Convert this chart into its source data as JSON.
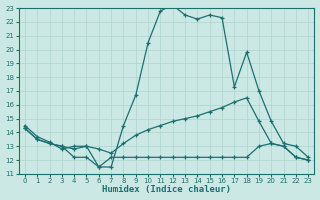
{
  "xlabel": "Humidex (Indice chaleur)",
  "background_color": "#cce8e4",
  "grid_color": "#aad4cc",
  "line_color": "#1a7070",
  "xlim_min": -0.5,
  "xlim_max": 23.5,
  "ylim_min": 11,
  "ylim_max": 23,
  "xticks": [
    0,
    1,
    2,
    3,
    4,
    5,
    6,
    7,
    8,
    9,
    10,
    11,
    12,
    13,
    14,
    15,
    16,
    17,
    18,
    19,
    20,
    21,
    22,
    23
  ],
  "yticks": [
    11,
    12,
    13,
    14,
    15,
    16,
    17,
    18,
    19,
    20,
    21,
    22,
    23
  ],
  "line1_x": [
    0,
    1,
    2,
    3,
    4,
    5,
    6,
    7,
    8,
    9,
    10,
    11,
    12,
    13,
    14,
    15,
    16,
    17,
    18,
    19,
    20,
    21,
    22,
    23
  ],
  "line1_y": [
    14.5,
    13.7,
    13.3,
    12.8,
    13.0,
    13.0,
    11.5,
    11.5,
    14.5,
    16.7,
    20.5,
    22.8,
    23.2,
    22.5,
    22.2,
    22.5,
    22.3,
    17.3,
    19.8,
    17.0,
    14.8,
    13.2,
    13.0,
    12.2
  ],
  "line2_x": [
    0,
    1,
    2,
    3,
    4,
    5,
    6,
    7,
    8,
    9,
    10,
    11,
    12,
    13,
    14,
    15,
    16,
    17,
    18,
    19,
    20,
    21,
    22,
    23
  ],
  "line2_y": [
    14.3,
    13.5,
    13.2,
    13.0,
    12.8,
    13.0,
    12.8,
    12.5,
    13.2,
    13.8,
    14.2,
    14.5,
    14.8,
    15.0,
    15.2,
    15.5,
    15.8,
    16.2,
    16.5,
    14.8,
    13.2,
    13.0,
    12.2,
    12.0
  ],
  "line3_x": [
    0,
    1,
    2,
    3,
    4,
    5,
    6,
    7,
    8,
    9,
    10,
    11,
    12,
    13,
    14,
    15,
    16,
    17,
    18,
    19,
    20,
    21,
    22,
    23
  ],
  "line3_y": [
    14.3,
    13.5,
    13.2,
    13.0,
    12.2,
    12.2,
    11.5,
    12.2,
    12.2,
    12.2,
    12.2,
    12.2,
    12.2,
    12.2,
    12.2,
    12.2,
    12.2,
    12.2,
    12.2,
    13.0,
    13.2,
    13.0,
    12.2,
    12.0
  ]
}
